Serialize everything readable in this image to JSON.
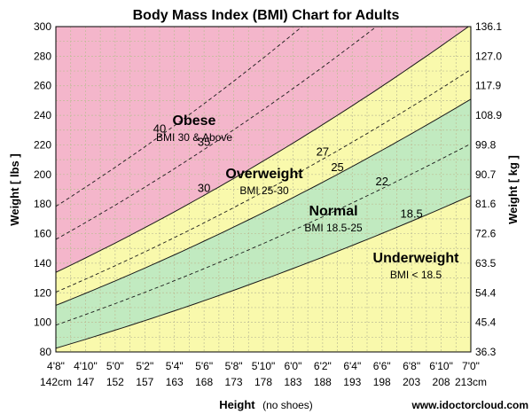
{
  "chart_data": {
    "type": "area",
    "title": "Body Mass Index (BMI) Chart for Adults",
    "xlabel": "Height",
    "xlabel_note": "(no shoes)",
    "ylabel_left": "Weight [ lbs ]",
    "ylabel_right": "Weight [ kg ]",
    "ylim": [
      80,
      300
    ],
    "xlim_inches": [
      56,
      84
    ],
    "x_ticks_ftin": [
      "4'8\"",
      "4'10\"",
      "5'0\"",
      "5'2\"",
      "5'4\"",
      "5'6\"",
      "5'8\"",
      "5'10\"",
      "6'0\"",
      "6'2\"",
      "6'4\"",
      "6'6\"",
      "6'8\"",
      "6'10\"",
      "7'0\""
    ],
    "x_ticks_cm": [
      "142cm",
      "147",
      "152",
      "157",
      "163",
      "168",
      "173",
      "178",
      "183",
      "188",
      "193",
      "198",
      "203",
      "208",
      "213cm"
    ],
    "y_ticks_lbs": [
      "300",
      "280",
      "260",
      "240",
      "220",
      "200",
      "180",
      "160",
      "140",
      "120",
      "100",
      "80"
    ],
    "y_ticks_kg": [
      "136.1",
      "127.0",
      "117.9",
      "108.9",
      "99.8",
      "90.7",
      "81.6",
      "72.6",
      "63.5",
      "54.4",
      "45.4",
      "36.3"
    ],
    "grid": true,
    "bmi_curves": [
      {
        "bmi": 18.5,
        "label": "18.5",
        "style": "solid"
      },
      {
        "bmi": 22,
        "label": "22",
        "style": "dashed"
      },
      {
        "bmi": 25,
        "label": "25",
        "style": "solid"
      },
      {
        "bmi": 27,
        "label": "27",
        "style": "dashed"
      },
      {
        "bmi": 30,
        "label": "30",
        "style": "solid"
      },
      {
        "bmi": 35,
        "label": "35",
        "style": "dashed"
      },
      {
        "bmi": 40,
        "label": "40",
        "style": "dashed"
      }
    ],
    "zones": [
      {
        "name": "Underweight",
        "desc": "BMI < 18.5",
        "bmi_min": 0,
        "bmi_max": 18.5,
        "color": "#f9f9ac"
      },
      {
        "name": "Normal",
        "desc": "BMI 18.5-25",
        "bmi_min": 18.5,
        "bmi_max": 25,
        "color": "#c1eac0"
      },
      {
        "name": "Overweight",
        "desc": "BMI 25-30",
        "bmi_min": 25,
        "bmi_max": 30,
        "color": "#f9f9ac"
      },
      {
        "name": "Obese",
        "desc": "BMI 30 & Above",
        "bmi_min": 30,
        "bmi_max": 99,
        "color": "#f4b6cb"
      }
    ]
  },
  "footer": {
    "website": "www.idoctorcloud.com"
  },
  "colors": {
    "grid": "#bdbd95",
    "curve": "#1a1a1a",
    "frame": "#000000"
  }
}
